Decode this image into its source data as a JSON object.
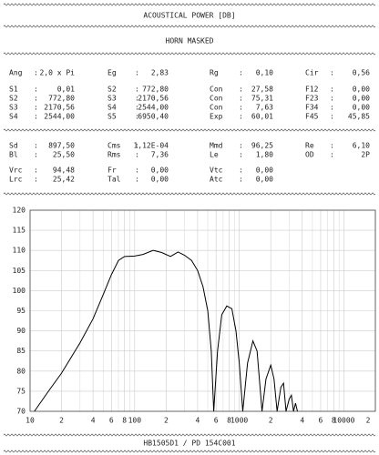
{
  "title": "ACOUSTICAL POWER [DB]",
  "subtitle": "HORN   MASKED",
  "footer": "HB1505D1 / PD 154C001",
  "params": [
    [
      {
        "label": "Ang",
        "value": "2,0 x Pi"
      },
      {
        "label": "Eg",
        "value": "2,83"
      },
      {
        "label": "Rg",
        "value": "0,10"
      },
      {
        "label": "Cir",
        "value": "0,56"
      }
    ],
    [
      {
        "label": "S1",
        "value": "0,01"
      },
      {
        "label": "S2",
        "value": "772,80"
      },
      {
        "label": "Con",
        "value": "27,58"
      },
      {
        "label": "F12",
        "value": "0,00"
      }
    ],
    [
      {
        "label": "S2",
        "value": "772,80"
      },
      {
        "label": "S3",
        "value": "2170,56"
      },
      {
        "label": "Con",
        "value": "75,31"
      },
      {
        "label": "F23",
        "value": "0,00"
      }
    ],
    [
      {
        "label": "S3",
        "value": "2170,56"
      },
      {
        "label": "S4",
        "value": "2544,00"
      },
      {
        "label": "Con",
        "value": "7,63"
      },
      {
        "label": "F34",
        "value": "0,00"
      }
    ],
    [
      {
        "label": "S4",
        "value": "2544,00"
      },
      {
        "label": "S5",
        "value": "6950,40"
      },
      {
        "label": "Exp",
        "value": "60,01"
      },
      {
        "label": "F45",
        "value": "45,85"
      }
    ],
    [
      {
        "label": "Sd",
        "value": "897,50"
      },
      {
        "label": "Cms",
        "value": "1,12E-04"
      },
      {
        "label": "Mmd",
        "value": "96,25"
      },
      {
        "label": "Re",
        "value": "6,10"
      }
    ],
    [
      {
        "label": "Bl",
        "value": "25,50"
      },
      {
        "label": "Rms",
        "value": "7,36"
      },
      {
        "label": "Le",
        "value": "1,80"
      },
      {
        "label": "OD",
        "value": "2P"
      }
    ],
    [
      {
        "label": "Vrc",
        "value": "94,48"
      },
      {
        "label": "Fr",
        "value": "0,00"
      },
      {
        "label": "Vtc",
        "value": "0,00"
      }
    ],
    [
      {
        "label": "Lrc",
        "value": "25,42"
      },
      {
        "label": "Tal",
        "value": "0,00"
      },
      {
        "label": "Atc",
        "value": "0,00"
      }
    ]
  ],
  "chart_data": {
    "type": "line",
    "log_x": true,
    "grid": true,
    "color": "#000000",
    "xlim": [
      10,
      20000
    ],
    "ylim": [
      70,
      120
    ],
    "yticks": [
      70,
      75,
      80,
      85,
      90,
      95,
      100,
      105,
      110,
      115,
      120
    ],
    "xticks": [
      10,
      {
        "value": 20,
        "label": "2"
      },
      {
        "value": 40,
        "label": "4"
      },
      {
        "value": 60,
        "label": "6"
      },
      {
        "value": 80,
        "label": "8"
      },
      100,
      {
        "value": 200,
        "label": "2"
      },
      {
        "value": 400,
        "label": "4"
      },
      {
        "value": 600,
        "label": "6"
      },
      {
        "value": 800,
        "label": "8"
      },
      1000,
      {
        "value": 2000,
        "label": "2"
      },
      {
        "value": 4000,
        "label": "4"
      },
      {
        "value": 6000,
        "label": "6"
      },
      {
        "value": 8000,
        "label": "8"
      },
      10000,
      {
        "value": 20000,
        "label": "2"
      }
    ],
    "xminorticks": [
      30,
      50,
      70,
      90,
      300,
      500,
      700,
      900,
      3000,
      5000,
      7000,
      9000
    ],
    "x": [
      11,
      15,
      20,
      30,
      40,
      50,
      60,
      70,
      80,
      100,
      120,
      150,
      180,
      220,
      260,
      300,
      350,
      400,
      450,
      500,
      540,
      570,
      620,
      680,
      760,
      850,
      930,
      1000,
      1080,
      1200,
      1350,
      1480,
      1650,
      1800,
      2000,
      2150,
      2300,
      2500,
      2650,
      2800,
      3000,
      3150,
      3300,
      3450,
      3600
    ],
    "values": [
      70,
      75,
      79.5,
      87,
      93,
      99,
      104,
      107.5,
      108.5,
      108.6,
      109,
      110,
      109.5,
      108.5,
      109.6,
      108.8,
      107.5,
      105,
      101,
      95,
      85,
      70,
      85,
      94,
      96.2,
      95.5,
      90,
      82,
      70,
      82,
      87.5,
      85,
      70,
      78,
      81.5,
      78,
      70,
      76,
      77,
      70,
      73,
      74,
      70,
      72,
      70
    ]
  }
}
